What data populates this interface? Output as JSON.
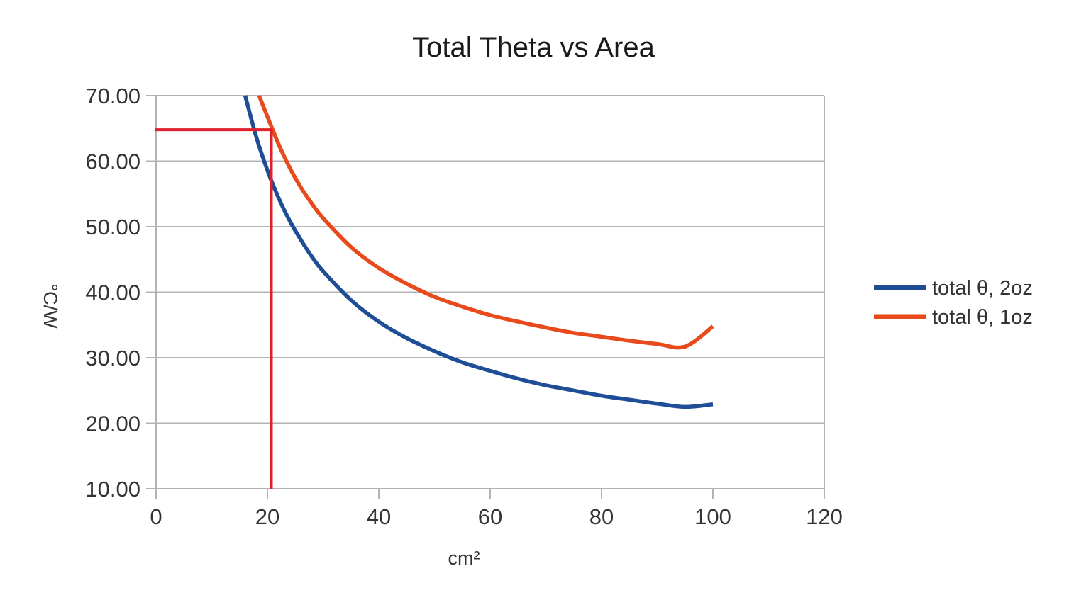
{
  "chart_data": {
    "type": "line",
    "title": "Total Theta vs Area",
    "xlabel": "cm²",
    "ylabel": "°C/W",
    "xlim": [
      0,
      120
    ],
    "ylim": [
      10,
      70
    ],
    "x_ticks": [
      0,
      20,
      40,
      60,
      80,
      100,
      120
    ],
    "y_ticks": [
      "10.00",
      "20.00",
      "30.00",
      "40.00",
      "50.00",
      "60.00",
      "70.00"
    ],
    "grid": "horizontal",
    "legend_position": "right",
    "series": [
      {
        "name": "total θ, 2oz",
        "color": "#1f4e96",
        "x": [
          16,
          18,
          20,
          22,
          24,
          26,
          28,
          30,
          35,
          40,
          45,
          50,
          55,
          60,
          65,
          70,
          75,
          80,
          85,
          90,
          95,
          100
        ],
        "y": [
          70.0,
          63.7,
          58.6,
          54.4,
          50.9,
          48.0,
          45.4,
          43.2,
          38.8,
          35.5,
          33.0,
          31.0,
          29.3,
          28.0,
          26.8,
          25.8,
          25.0,
          24.2,
          23.6,
          23.0,
          22.5,
          22.9
        ]
      },
      {
        "name": "total θ, 1oz",
        "color": "#e84a1c",
        "x": [
          18.5,
          20,
          22,
          24,
          26,
          28,
          30,
          35,
          40,
          45,
          50,
          55,
          60,
          65,
          70,
          75,
          80,
          85,
          90,
          95,
          100
        ],
        "y": [
          70.0,
          66.8,
          62.6,
          59.0,
          56.0,
          53.5,
          51.3,
          46.9,
          43.7,
          41.3,
          39.3,
          37.8,
          36.5,
          35.5,
          34.6,
          33.8,
          33.2,
          32.6,
          32.1,
          31.7,
          34.8
        ]
      }
    ],
    "annotations": [
      {
        "type": "guide-lines",
        "color": "#e0202a",
        "x": 20.7,
        "y": 64.8
      }
    ]
  }
}
